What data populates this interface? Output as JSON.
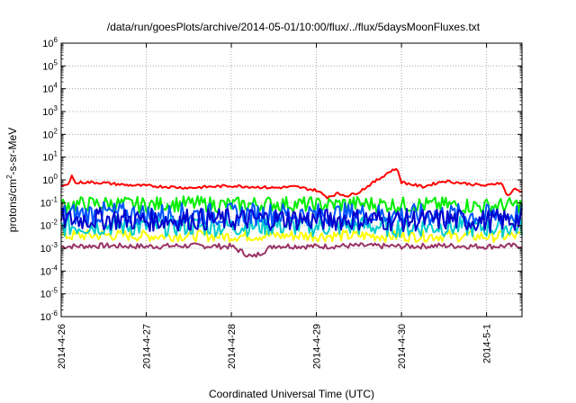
{
  "chart_data": {
    "type": "line",
    "title": "/data/run/goesPlots/archive/2014-05-01/10:00/flux/../flux/5daysMoonFluxes.txt",
    "xlabel": "Coordinated Universal Time (UTC)",
    "ylabel_parts": [
      "protons/cm",
      "2",
      "-s-sr-MeV"
    ],
    "y_scale": "log",
    "ylim": [
      1e-06,
      1000000.0
    ],
    "xlim": [
      "2014-04-26 00:00",
      "2014-05-01 10:00"
    ],
    "grid": "dotted",
    "y_ticks": [
      {
        "base": "10",
        "exp": "-6",
        "value": 1e-06
      },
      {
        "base": "10",
        "exp": "-5",
        "value": 1e-05
      },
      {
        "base": "10",
        "exp": "-4",
        "value": 0.0001
      },
      {
        "base": "10",
        "exp": "-3",
        "value": 0.001
      },
      {
        "base": "10",
        "exp": "-2",
        "value": 0.01
      },
      {
        "base": "10",
        "exp": "-1",
        "value": 0.1
      },
      {
        "base": "10",
        "exp": "0",
        "value": 1
      },
      {
        "base": "10",
        "exp": "1",
        "value": 10
      },
      {
        "base": "10",
        "exp": "2",
        "value": 100
      },
      {
        "base": "10",
        "exp": "3",
        "value": 1000
      },
      {
        "base": "10",
        "exp": "4",
        "value": 10000
      },
      {
        "base": "10",
        "exp": "5",
        "value": 100000
      },
      {
        "base": "10",
        "exp": "6",
        "value": 1000000
      }
    ],
    "x_ticks": [
      "2014-4-26",
      "2014-4-27",
      "2014-4-28",
      "2014-4-29",
      "2014-4-30",
      "2014-5-1"
    ],
    "series": [
      {
        "color": "#ff0000",
        "x": [
          "2014-04-26 00:00",
          "2014-04-26 02:00",
          "2014-04-26 03:00",
          "2014-04-26 04:00",
          "2014-04-26 06:00",
          "2014-04-26 12:00",
          "2014-04-26 18:00",
          "2014-04-27 00:00",
          "2014-04-27 06:00",
          "2014-04-27 12:00",
          "2014-04-27 18:00",
          "2014-04-28 00:00",
          "2014-04-28 06:00",
          "2014-04-28 12:00",
          "2014-04-28 18:00",
          "2014-04-29 00:00",
          "2014-04-29 03:00",
          "2014-04-29 06:00",
          "2014-04-29 09:00",
          "2014-04-29 12:00",
          "2014-04-29 18:00",
          "2014-04-29 20:00",
          "2014-04-29 22:00",
          "2014-04-29 23:00",
          "2014-04-30 00:00",
          "2014-04-30 06:00",
          "2014-04-30 12:00",
          "2014-04-30 18:00",
          "2014-05-01 00:00",
          "2014-05-01 04:00",
          "2014-05-01 06:00",
          "2014-05-01 08:00",
          "2014-05-01 10:00"
        ],
        "y": [
          0.55,
          0.6,
          1.8,
          0.7,
          0.8,
          0.75,
          0.6,
          0.55,
          0.5,
          0.45,
          0.5,
          0.55,
          0.5,
          0.45,
          0.5,
          0.35,
          0.18,
          0.25,
          0.2,
          0.3,
          1.2,
          2.0,
          3.0,
          2.5,
          0.8,
          0.5,
          0.9,
          0.7,
          0.55,
          0.8,
          0.2,
          0.4,
          0.3
        ]
      },
      {
        "color": "#00ee00",
        "x": [
          "2014-04-26 00:00",
          "2014-04-26 12:00",
          "2014-04-27 00:00",
          "2014-04-27 12:00",
          "2014-04-28 00:00",
          "2014-04-28 12:00",
          "2014-04-29 00:00",
          "2014-04-29 12:00",
          "2014-04-30 00:00",
          "2014-04-30 12:00",
          "2014-05-01 00:00",
          "2014-05-01 10:00"
        ],
        "y": [
          0.08,
          0.09,
          0.08,
          0.09,
          0.08,
          0.09,
          0.08,
          0.09,
          0.08,
          0.08,
          0.07,
          0.08
        ]
      },
      {
        "color": "#0055ff",
        "x": [
          "2014-04-26 00:00",
          "2014-04-26 12:00",
          "2014-04-27 00:00",
          "2014-04-27 12:00",
          "2014-04-28 00:00",
          "2014-04-28 12:00",
          "2014-04-29 00:00",
          "2014-04-29 12:00",
          "2014-04-30 00:00",
          "2014-04-30 12:00",
          "2014-05-01 00:00",
          "2014-05-01 10:00"
        ],
        "y": [
          0.03,
          0.035,
          0.03,
          0.032,
          0.03,
          0.033,
          0.03,
          0.032,
          0.028,
          0.03,
          0.027,
          0.03
        ]
      },
      {
        "color": "#0000cc",
        "x": [
          "2014-04-26 00:00",
          "2014-04-26 12:00",
          "2014-04-27 00:00",
          "2014-04-27 12:00",
          "2014-04-28 00:00",
          "2014-04-28 12:00",
          "2014-04-29 00:00",
          "2014-04-29 12:00",
          "2014-04-30 00:00",
          "2014-04-30 12:00",
          "2014-05-01 00:00",
          "2014-05-01 10:00"
        ],
        "y": [
          0.018,
          0.02,
          0.017,
          0.019,
          0.018,
          0.02,
          0.018,
          0.019,
          0.017,
          0.018,
          0.016,
          0.018
        ]
      },
      {
        "color": "#00cccc",
        "x": [
          "2014-04-26 00:00",
          "2014-04-26 12:00",
          "2014-04-27 00:00",
          "2014-04-27 12:00",
          "2014-04-28 00:00",
          "2014-04-28 12:00",
          "2014-04-29 00:00",
          "2014-04-29 12:00",
          "2014-04-30 00:00",
          "2014-04-30 12:00",
          "2014-05-01 00:00",
          "2014-05-01 10:00"
        ],
        "y": [
          0.009,
          0.01,
          0.009,
          0.0095,
          0.009,
          0.01,
          0.009,
          0.0095,
          0.0085,
          0.009,
          0.008,
          0.009
        ]
      },
      {
        "color": "#ffff00",
        "x": [
          "2014-04-26 00:00",
          "2014-04-26 12:00",
          "2014-04-27 00:00",
          "2014-04-27 12:00",
          "2014-04-28 00:00",
          "2014-04-28 12:00",
          "2014-04-29 00:00",
          "2014-04-29 12:00",
          "2014-04-30 00:00",
          "2014-04-30 12:00",
          "2014-05-01 00:00",
          "2014-05-01 10:00"
        ],
        "y": [
          0.0035,
          0.0038,
          0.0035,
          0.0036,
          0.0034,
          0.0037,
          0.0035,
          0.0036,
          0.0034,
          0.0035,
          0.0033,
          0.0035
        ]
      },
      {
        "color": "#993366",
        "x": [
          "2014-04-26 00:00",
          "2014-04-26 12:00",
          "2014-04-27 00:00",
          "2014-04-27 12:00",
          "2014-04-28 00:00",
          "2014-04-28 06:00",
          "2014-04-28 12:00",
          "2014-04-29 00:00",
          "2014-04-29 12:00",
          "2014-04-30 00:00",
          "2014-04-30 12:00",
          "2014-05-01 00:00",
          "2014-05-01 10:00"
        ],
        "y": [
          0.0012,
          0.0013,
          0.0012,
          0.0013,
          0.0012,
          0.0004,
          0.0013,
          0.0012,
          0.0013,
          0.0012,
          0.0013,
          0.0012,
          0.0013
        ]
      }
    ]
  }
}
